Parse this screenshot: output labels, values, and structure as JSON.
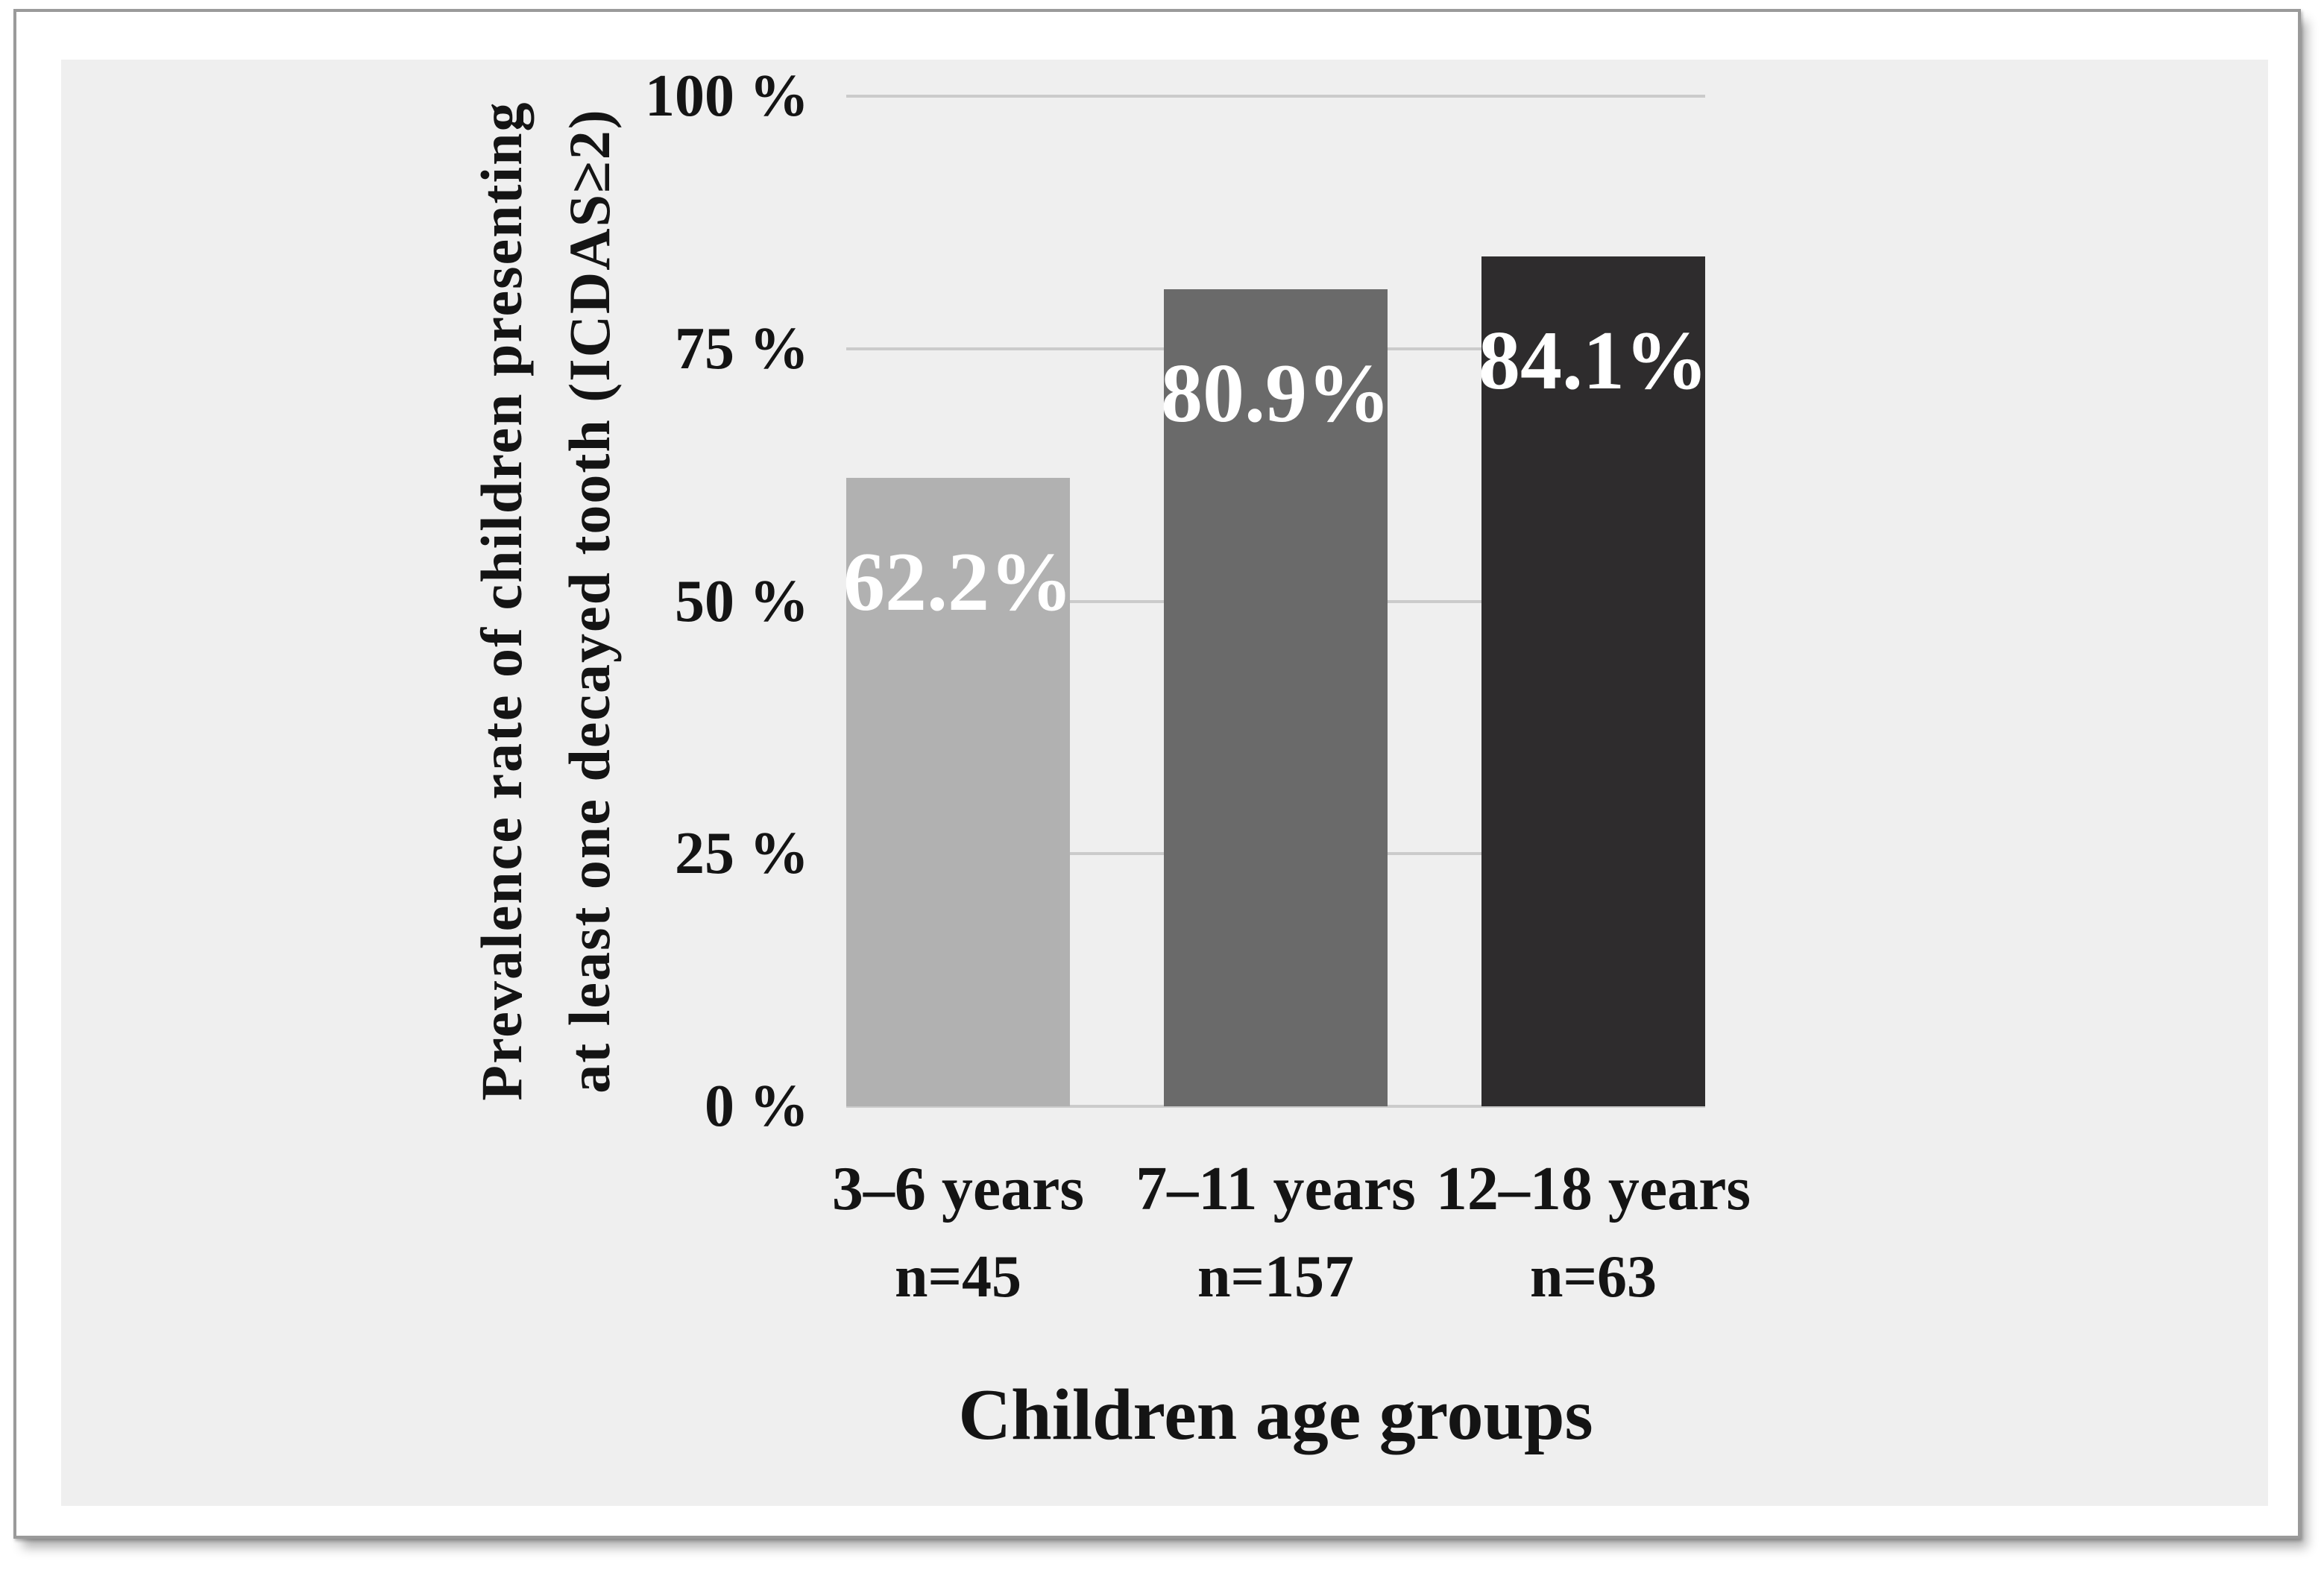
{
  "chart_data": {
    "type": "bar",
    "categories": [
      "3–6 years",
      "7–11 years",
      "12–18 years"
    ],
    "category_counts": [
      "n=45",
      "n=157",
      "n=63"
    ],
    "values": [
      62.2,
      80.9,
      84.1
    ],
    "value_labels": [
      "62.2%",
      "80.9%",
      "84.1%"
    ],
    "bar_colors": [
      "#b1b1b1",
      "#6a6a6a",
      "#2e2c2d"
    ],
    "xlabel": "Children age groups",
    "ylabel_line1": "Prevalence rate of children presenting",
    "ylabel_line2": "at least one decayed tooth (ICDAS≥2)",
    "ylim": [
      0,
      100
    ],
    "yticks": [
      {
        "value": 0,
        "label": "0 %"
      },
      {
        "value": 25,
        "label": "25 %"
      },
      {
        "value": 50,
        "label": "50 %"
      },
      {
        "value": 75,
        "label": "75 %"
      },
      {
        "value": 100,
        "label": "100 %"
      }
    ],
    "grid": true,
    "legend_position": "none"
  },
  "style": {
    "page_background": "#ffffff",
    "panel_background": "#efefef",
    "gridline_color": "#cbcbcb",
    "frame_border_color": "#9a9a9a",
    "text_color": "#141414",
    "value_label_color": "#ffffff"
  }
}
